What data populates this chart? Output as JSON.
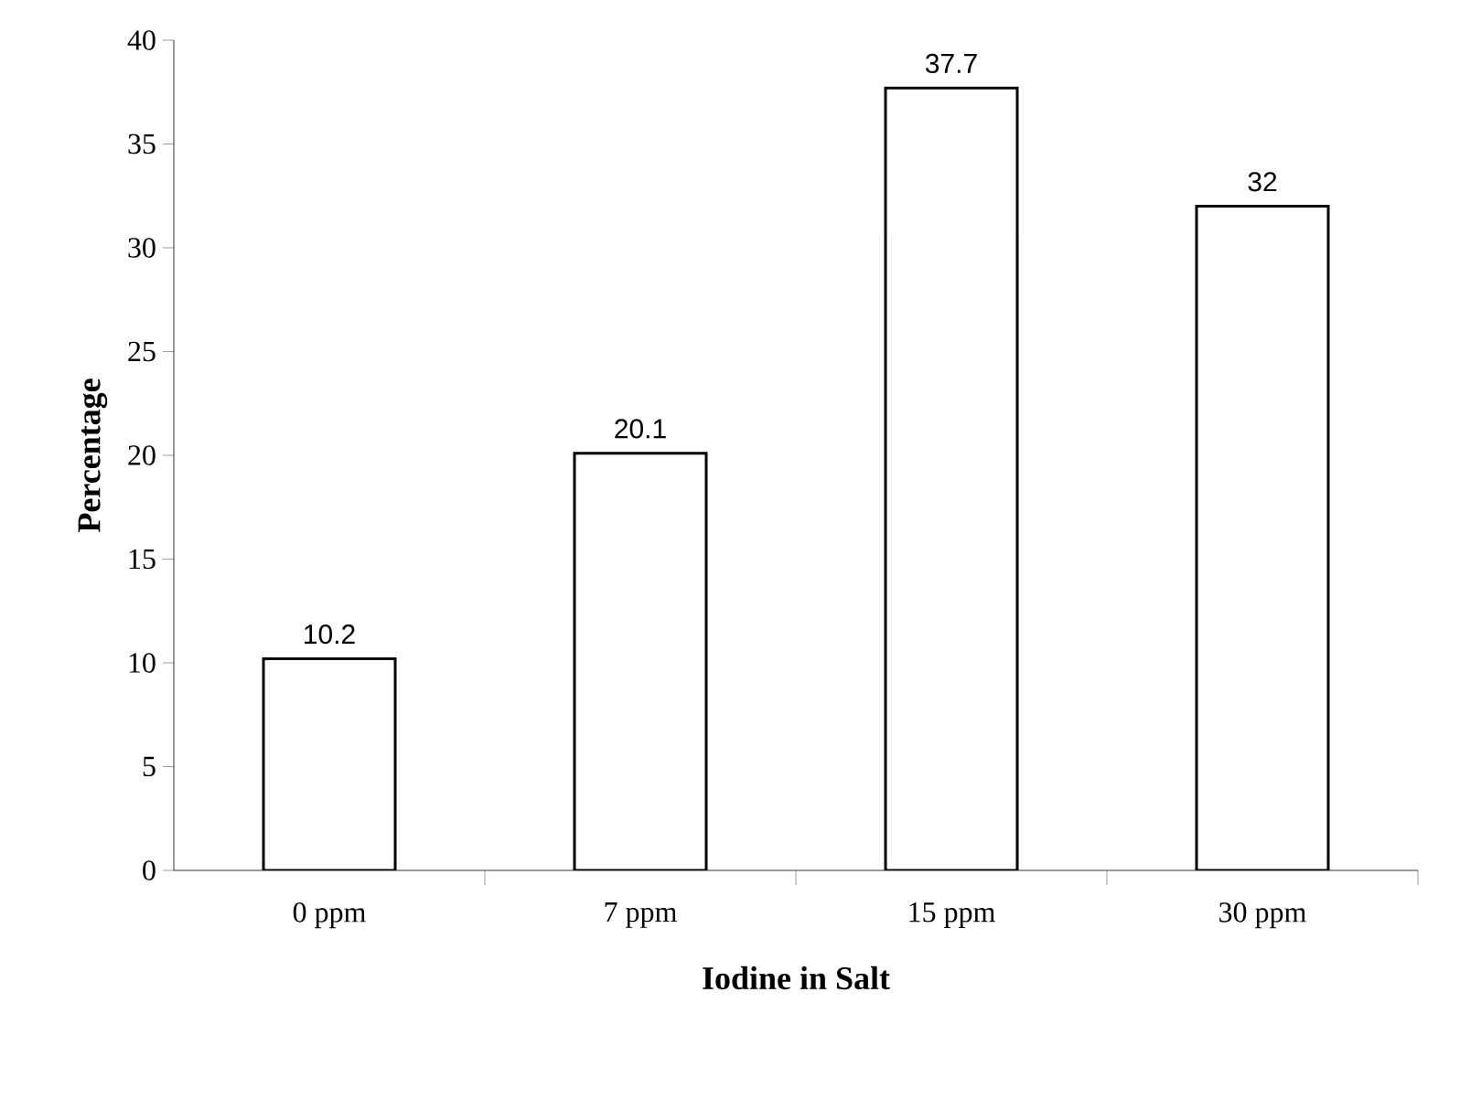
{
  "chart_data": {
    "type": "bar",
    "xlabel": "Iodine in Salt",
    "ylabel": "Percentage",
    "categories": [
      "0 ppm",
      "7 ppm",
      "15 ppm",
      "30 ppm"
    ],
    "values": [
      10.2,
      20.1,
      37.7,
      32
    ],
    "color": "#ffffff",
    "ylim": [
      0,
      40
    ],
    "yticks": [
      0,
      5,
      10,
      15,
      20,
      25,
      30,
      35,
      40
    ],
    "data_labels": true,
    "grid": false
  }
}
